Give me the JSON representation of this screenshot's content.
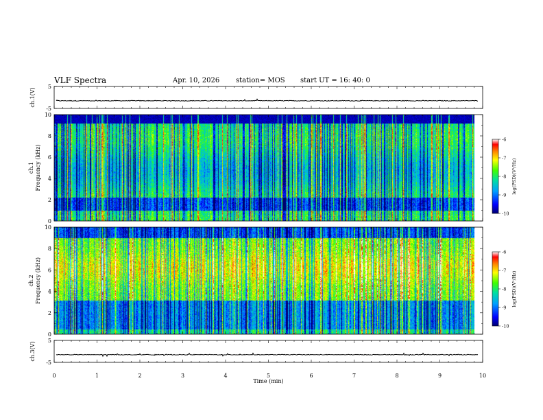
{
  "header": {
    "title": "VLF Spectra",
    "date": "Apr. 10, 2026",
    "station": "station= MOS",
    "start": "start UT =   16: 40: 0"
  },
  "chart_data": [
    {
      "type": "line",
      "name": "ch1-waveform",
      "ylabel": "ch.1(V)",
      "ylim": [
        -5,
        5
      ],
      "yticks": [
        "5",
        "-5"
      ],
      "trace_level": -1.5,
      "xlim": [
        0,
        10
      ]
    },
    {
      "type": "heatmap",
      "name": "ch1-spectrogram",
      "ylabel": "ch.1\nFrequency (kHz)",
      "ylim": [
        0,
        10
      ],
      "yticks": [
        "0",
        "2",
        "4",
        "6",
        "8",
        "10"
      ],
      "xlim": [
        0,
        10
      ],
      "data_end_min": 9.8,
      "colorbar": {
        "label": "log(PSD)(V²/Hz)",
        "range": [
          -10,
          -6
        ],
        "ticks": [
          "-6",
          "-7",
          "-8",
          "-9",
          "-10"
        ]
      }
    },
    {
      "type": "heatmap",
      "name": "ch2-spectrogram",
      "ylabel": "ch.2\nFrequency (kHz)",
      "ylim": [
        0,
        10
      ],
      "yticks": [
        "0",
        "2",
        "4",
        "6",
        "8",
        "10"
      ],
      "xlim": [
        0,
        10
      ],
      "data_end_min": 9.8,
      "colorbar": {
        "label": "log(PSD)(V²/Hz)",
        "range": [
          -10,
          -6
        ],
        "ticks": [
          "-6",
          "-7",
          "-8",
          "-9",
          "-10"
        ]
      }
    },
    {
      "type": "line",
      "name": "ch3-waveform",
      "ylabel": "ch.3(V)",
      "ylim": [
        -5,
        5
      ],
      "yticks": [
        "5",
        "-5"
      ],
      "trace_level": -1.5,
      "xlim": [
        0,
        10
      ],
      "xlabel": "Time (min)",
      "xticks": [
        "0",
        "1",
        "2",
        "3",
        "4",
        "5",
        "6",
        "7",
        "8",
        "9",
        "10"
      ]
    }
  ],
  "colors": {
    "axis": "#000000",
    "trace": "#000000"
  }
}
